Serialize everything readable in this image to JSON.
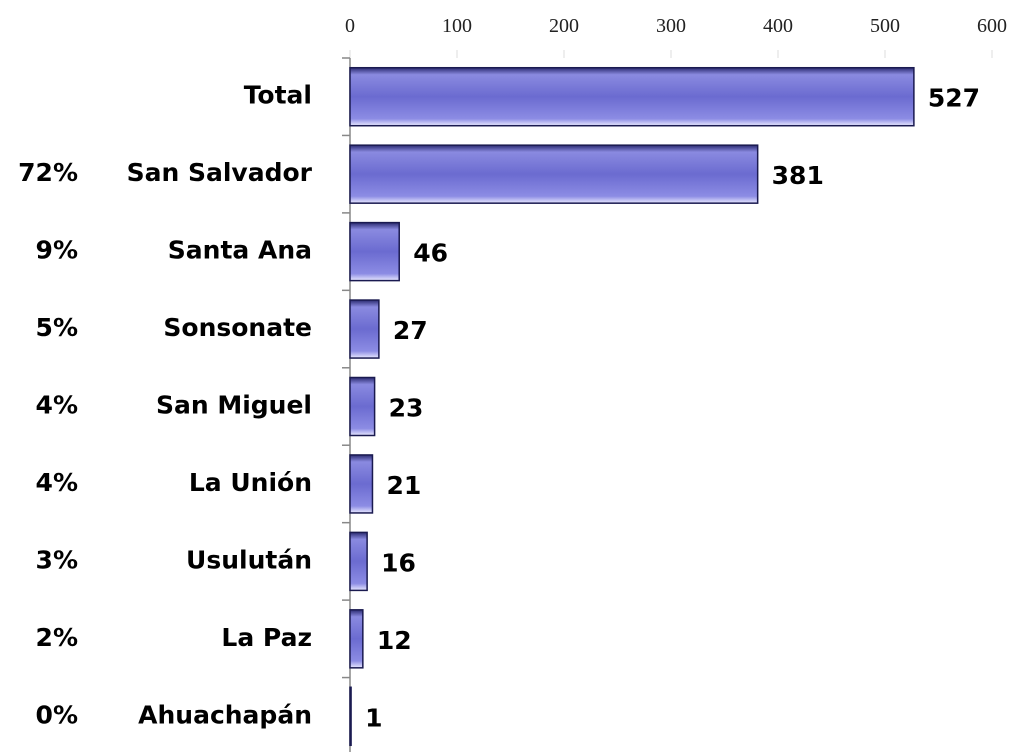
{
  "chart_data": {
    "type": "bar",
    "orientation": "horizontal",
    "categories": [
      "Total",
      "San Salvador",
      "Santa Ana",
      "Sonsonate",
      "San Miguel",
      "La Unión",
      "Usulután",
      "La Paz",
      "Ahuachapán"
    ],
    "values": [
      527,
      381,
      46,
      27,
      23,
      21,
      16,
      12,
      1
    ],
    "shares": [
      null,
      "72%",
      "9%",
      "5%",
      "4%",
      "4%",
      "3%",
      "2%",
      "0%"
    ],
    "color": "#6b6bd0",
    "xlim": [
      0,
      600
    ],
    "xticks": [
      0,
      100,
      200,
      300,
      400,
      500,
      600
    ]
  }
}
